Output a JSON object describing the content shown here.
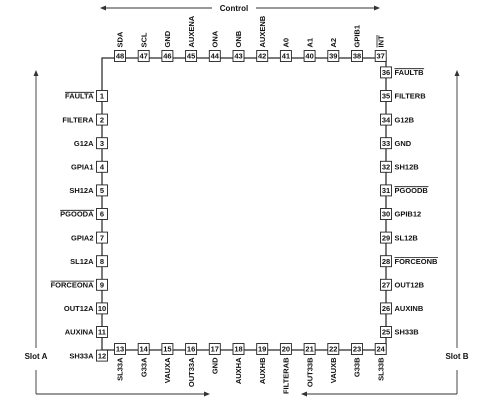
{
  "diagram": {
    "group_labels": {
      "top": "Control",
      "left": "Slot A",
      "right": "Slot B"
    },
    "colors": {
      "line": "#222222",
      "text": "#111111",
      "background": "#ffffff"
    },
    "pins": {
      "left": [
        {
          "num": "1",
          "label": "FAULTA",
          "overbar": true
        },
        {
          "num": "2",
          "label": "FILTERA",
          "overbar": false
        },
        {
          "num": "3",
          "label": "G12A",
          "overbar": false
        },
        {
          "num": "4",
          "label": "GPIA1",
          "overbar": false
        },
        {
          "num": "5",
          "label": "SH12A",
          "overbar": false
        },
        {
          "num": "6",
          "label": "PGOODA",
          "overbar": true
        },
        {
          "num": "7",
          "label": "GPIA2",
          "overbar": false
        },
        {
          "num": "8",
          "label": "SL12A",
          "overbar": false
        },
        {
          "num": "9",
          "label": "FORCEONA",
          "overbar": true
        },
        {
          "num": "10",
          "label": "OUT12A",
          "overbar": false
        },
        {
          "num": "11",
          "label": "AUXINA",
          "overbar": false
        },
        {
          "num": "12",
          "label": "SH33A",
          "overbar": false
        }
      ],
      "bottom": [
        {
          "num": "13",
          "label": "SL33A",
          "overbar": false
        },
        {
          "num": "14",
          "label": "G33A",
          "overbar": false
        },
        {
          "num": "15",
          "label": "VAUXA",
          "overbar": false
        },
        {
          "num": "16",
          "label": "OUT33A",
          "overbar": false
        },
        {
          "num": "17",
          "label": "GND",
          "overbar": false
        },
        {
          "num": "18",
          "label": "AUXHA",
          "overbar": false
        },
        {
          "num": "19",
          "label": "AUXHB",
          "overbar": false
        },
        {
          "num": "20",
          "label": "FILTERAB",
          "overbar": false
        },
        {
          "num": "21",
          "label": "OUT33B",
          "overbar": false
        },
        {
          "num": "22",
          "label": "VAUXB",
          "overbar": false
        },
        {
          "num": "23",
          "label": "G33B",
          "overbar": false
        },
        {
          "num": "24",
          "label": "SL33B",
          "overbar": false
        }
      ],
      "right": [
        {
          "num": "36",
          "label": "FAULTB",
          "overbar": true
        },
        {
          "num": "35",
          "label": "FILTERB",
          "overbar": false
        },
        {
          "num": "34",
          "label": "G12B",
          "overbar": false
        },
        {
          "num": "33",
          "label": "GND",
          "overbar": false
        },
        {
          "num": "32",
          "label": "SH12B",
          "overbar": false
        },
        {
          "num": "31",
          "label": "PGOODB",
          "overbar": true
        },
        {
          "num": "30",
          "label": "GPIB12",
          "overbar": false
        },
        {
          "num": "29",
          "label": "SL12B",
          "overbar": false
        },
        {
          "num": "28",
          "label": "FORCEONB",
          "overbar": true
        },
        {
          "num": "27",
          "label": "OUT12B",
          "overbar": false
        },
        {
          "num": "26",
          "label": "AUXINB",
          "overbar": false
        },
        {
          "num": "25",
          "label": "SH33B",
          "overbar": false
        }
      ],
      "top": [
        {
          "num": "48",
          "label": "SDA",
          "overbar": false
        },
        {
          "num": "47",
          "label": "SCL",
          "overbar": false
        },
        {
          "num": "46",
          "label": "GND",
          "overbar": false
        },
        {
          "num": "45",
          "label": "AUXENA",
          "overbar": false
        },
        {
          "num": "44",
          "label": "ONA",
          "overbar": false
        },
        {
          "num": "43",
          "label": "ONB",
          "overbar": false
        },
        {
          "num": "42",
          "label": "AUXENB",
          "overbar": false
        },
        {
          "num": "41",
          "label": "A0",
          "overbar": false
        },
        {
          "num": "40",
          "label": "A1",
          "overbar": false
        },
        {
          "num": "39",
          "label": "A2",
          "overbar": false
        },
        {
          "num": "38",
          "label": "GPIB1",
          "overbar": false
        },
        {
          "num": "37",
          "label": "INT",
          "overbar": true
        }
      ]
    }
  }
}
